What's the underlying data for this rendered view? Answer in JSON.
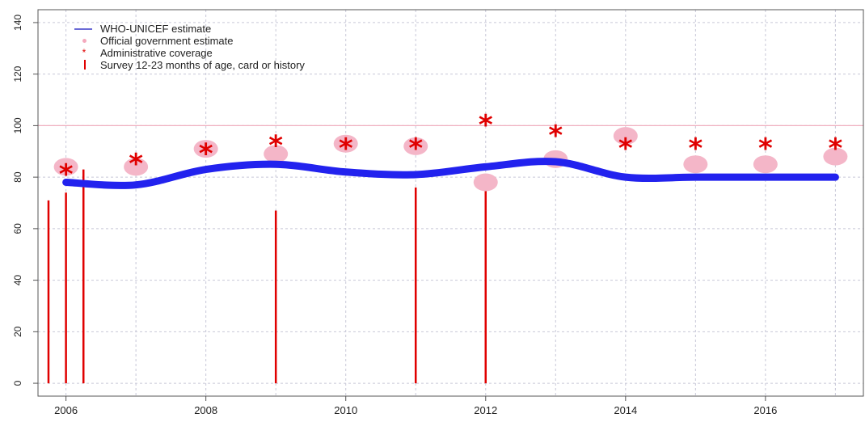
{
  "chart_data": {
    "type": "line",
    "x_ticks": [
      2006,
      2008,
      2010,
      2012,
      2014,
      2016
    ],
    "y_ticks": [
      0,
      20,
      40,
      60,
      80,
      100,
      120,
      140
    ],
    "xlim": [
      2005.6,
      2017.4
    ],
    "ylim": [
      -5,
      145
    ],
    "reference_line": 100,
    "grid": true,
    "legend_position": "top-left",
    "legend": [
      {
        "label": "WHO-UNICEF estimate",
        "symbol": "line"
      },
      {
        "label": "Official government estimate",
        "symbol": "dot"
      },
      {
        "label": "Administrative coverage",
        "symbol": "star"
      },
      {
        "label": "Survey 12-23 months of age, card or history",
        "symbol": "bar"
      }
    ],
    "series": [
      {
        "name": "WHO-UNICEF estimate",
        "x": [
          2006,
          2007,
          2008,
          2009,
          2010,
          2011,
          2012,
          2013,
          2014,
          2015,
          2016,
          2017
        ],
        "values": [
          78,
          77,
          83,
          85,
          82,
          81,
          84,
          86,
          80,
          80,
          80,
          80
        ]
      },
      {
        "name": "Official government estimate",
        "x": [
          2006,
          2007,
          2008,
          2009,
          2010,
          2011,
          2012,
          2013,
          2014,
          2015,
          2016,
          2017
        ],
        "values": [
          84,
          84,
          91,
          89,
          93,
          92,
          78,
          87,
          96,
          85,
          85,
          88
        ]
      },
      {
        "name": "Administrative coverage",
        "x": [
          2006,
          2007,
          2008,
          2009,
          2010,
          2011,
          2012,
          2013,
          2014,
          2015,
          2016,
          2017
        ],
        "values": [
          82,
          86,
          90,
          93,
          92,
          92,
          101,
          97,
          92,
          92,
          92,
          92
        ]
      },
      {
        "name": "Survey 12-23 months of age, card or history",
        "x": [
          2005.75,
          2006,
          2006.25,
          2009,
          2011,
          2012
        ],
        "values": [
          71,
          74,
          83,
          67,
          76,
          77
        ]
      }
    ]
  },
  "colors": {
    "estimate": "#2222ee",
    "official": "#f4b6c8",
    "admin": "#e00000",
    "survey": "#e00000",
    "reference": "#f0b0c0",
    "grid": "#c8c8d8",
    "axis": "#555555"
  }
}
